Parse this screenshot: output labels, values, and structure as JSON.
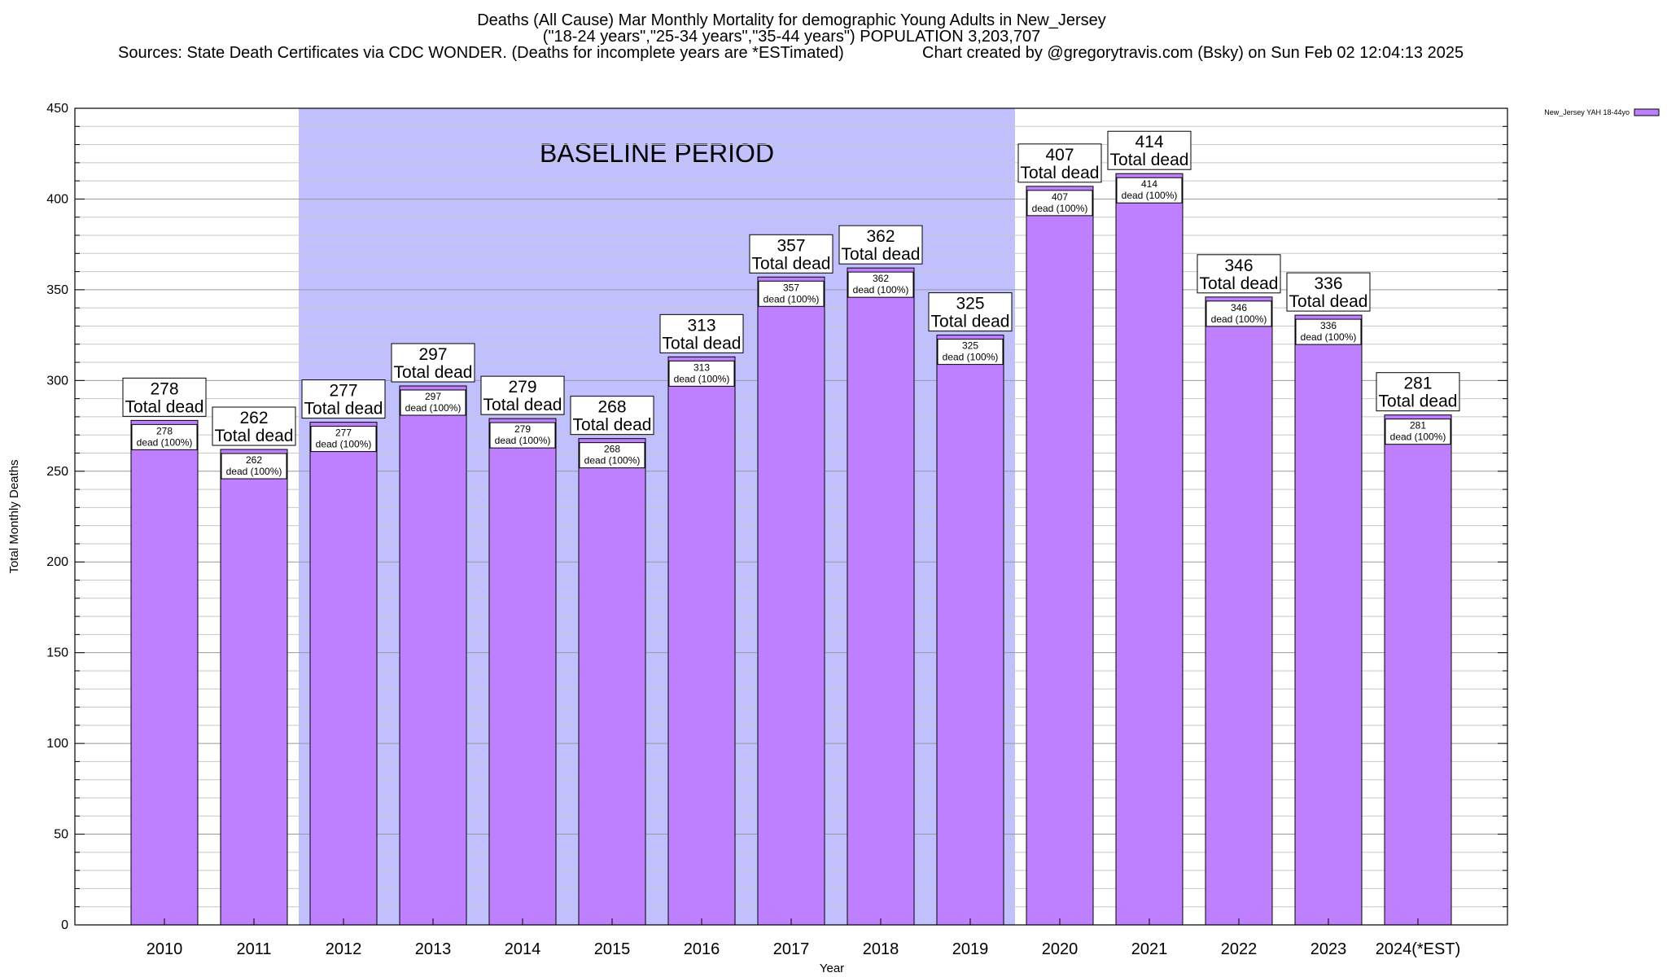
{
  "title": {
    "line1": "Deaths (All Cause) Mar Monthly Mortality for demographic Young Adults in New_Jersey",
    "line2": "(\"18-24 years\",\"25-34 years\",\"35-44 years\") POPULATION 3,203,707",
    "line3_left": "Sources: State Death Certificates via CDC WONDER. (Deaths for incomplete years are *ESTimated)",
    "line3_right": "Chart created by @gregorytravis.com (Bsky) on Sun Feb 02 12:04:13 2025"
  },
  "chart_data": {
    "type": "bar",
    "xlabel": "Year",
    "ylabel": "Total Monthly Deaths",
    "ylim": [
      0,
      450
    ],
    "yticks": [
      0,
      50,
      100,
      150,
      200,
      250,
      300,
      350,
      400,
      450
    ],
    "grid": true,
    "legend_position": "top-right",
    "categories": [
      "2010",
      "2011",
      "2012",
      "2013",
      "2014",
      "2015",
      "2016",
      "2017",
      "2018",
      "2019",
      "2020",
      "2021",
      "2022",
      "2023",
      "2024(*EST)"
    ],
    "series": [
      {
        "name": "New_Jersey YAH 18-44yo",
        "values": [
          278,
          262,
          277,
          297,
          279,
          268,
          313,
          357,
          362,
          325,
          407,
          414,
          346,
          336,
          281
        ],
        "color": "#bf80ff"
      }
    ],
    "total_label": "Total dead",
    "inner_label": "dead (100%)",
    "baseline_period": {
      "label": "BASELINE PERIOD",
      "start": "2012",
      "end": "2019",
      "color": "#c0c0ff"
    }
  }
}
